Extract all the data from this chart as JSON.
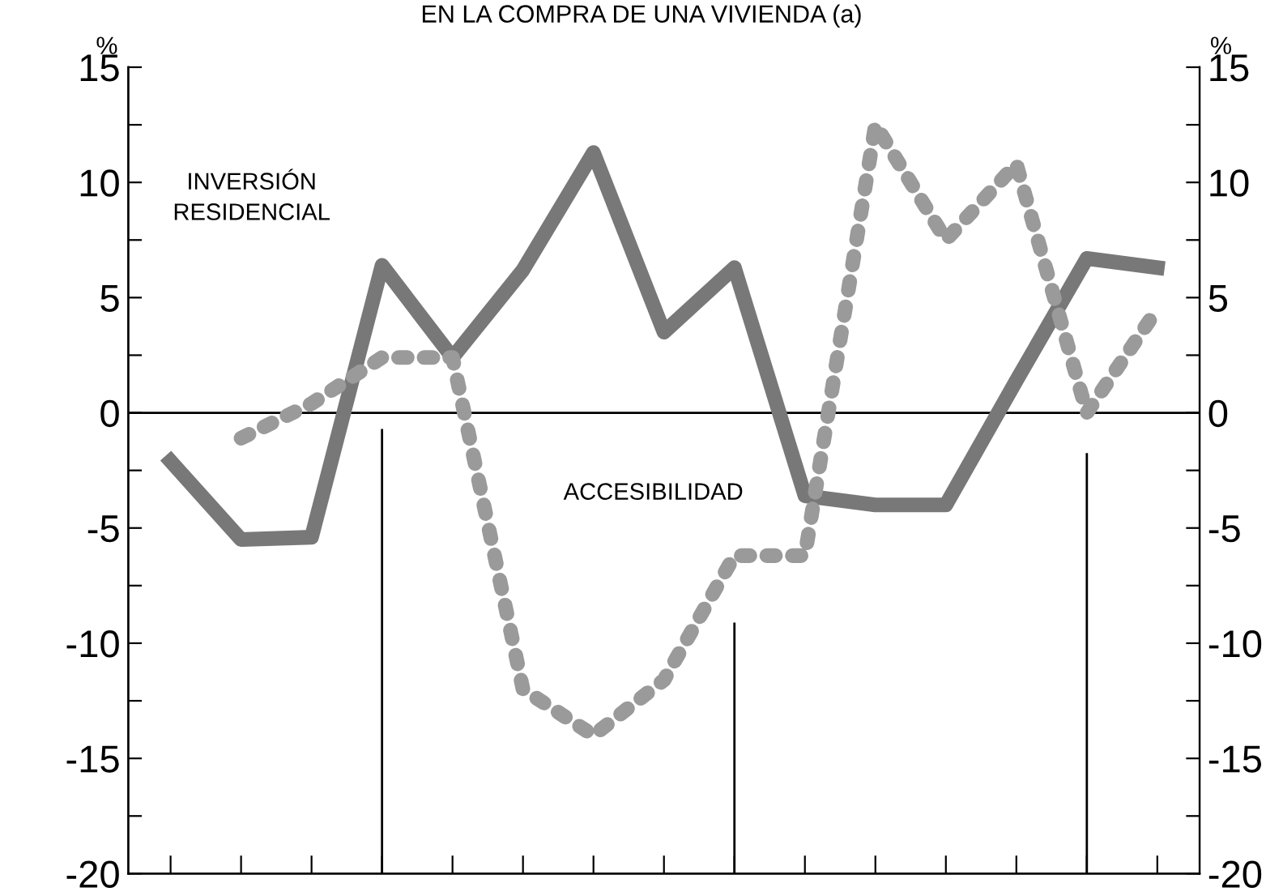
{
  "chart_data": {
    "type": "line",
    "title": "EN LA COMPRA DE UNA VIVIENDA (a)",
    "ylabel": "%",
    "y2label": "%",
    "categories": [
      null,
      null,
      null,
      null,
      null,
      null,
      null,
      null,
      null,
      null,
      null,
      null,
      null,
      null,
      null
    ],
    "series": [
      {
        "name": "INVERSIÓN RESIDENCIAL",
        "color": "#787878",
        "line_style": "solid",
        "values": [
          -2.1,
          -5.5,
          -5.4,
          6.4,
          2.4,
          6.2,
          11.3,
          3.5,
          6.3,
          -3.6,
          -4.0,
          -4.0,
          1.4,
          6.7,
          6.3
        ]
      },
      {
        "name": "ACCESIBILIDAD",
        "color": "#9a9a9a",
        "line_style": "dotted",
        "values": [
          null,
          -1.1,
          0.4,
          2.4,
          2.4,
          -12.0,
          -14.0,
          -11.6,
          -6.2,
          -6.2,
          12.5,
          7.5,
          10.8,
          0.0,
          4.5
        ]
      }
    ],
    "ylim": [
      -20,
      15
    ],
    "y2lim": [
      -20,
      15
    ],
    "yticks": [
      -20,
      {
        "value": -17.5,
        "label": null
      },
      -15,
      {
        "value": -12.5,
        "label": null
      },
      -10,
      {
        "value": -7.5,
        "label": null
      },
      -5,
      {
        "value": -2.5,
        "label": null
      },
      0,
      {
        "value": 2.5,
        "label": null
      },
      5,
      {
        "value": 7.5,
        "label": null
      },
      10,
      {
        "value": 12.5,
        "label": null
      },
      15
    ],
    "y2ticks": [
      -20,
      {
        "value": -17.5,
        "label": null
      },
      -15,
      {
        "value": -12.5,
        "label": null
      },
      -10,
      {
        "value": -7.5,
        "label": null
      },
      -5,
      {
        "value": -2.5,
        "label": null
      },
      0,
      {
        "value": 2.5,
        "label": null
      },
      5,
      {
        "value": 7.5,
        "label": null
      },
      10,
      {
        "value": 12.5,
        "label": null
      },
      15
    ],
    "ref_lines": [
      {
        "axis": "y",
        "value": 0,
        "color": "#000000"
      }
    ],
    "grid": false,
    "legend": false,
    "marker": "none"
  }
}
